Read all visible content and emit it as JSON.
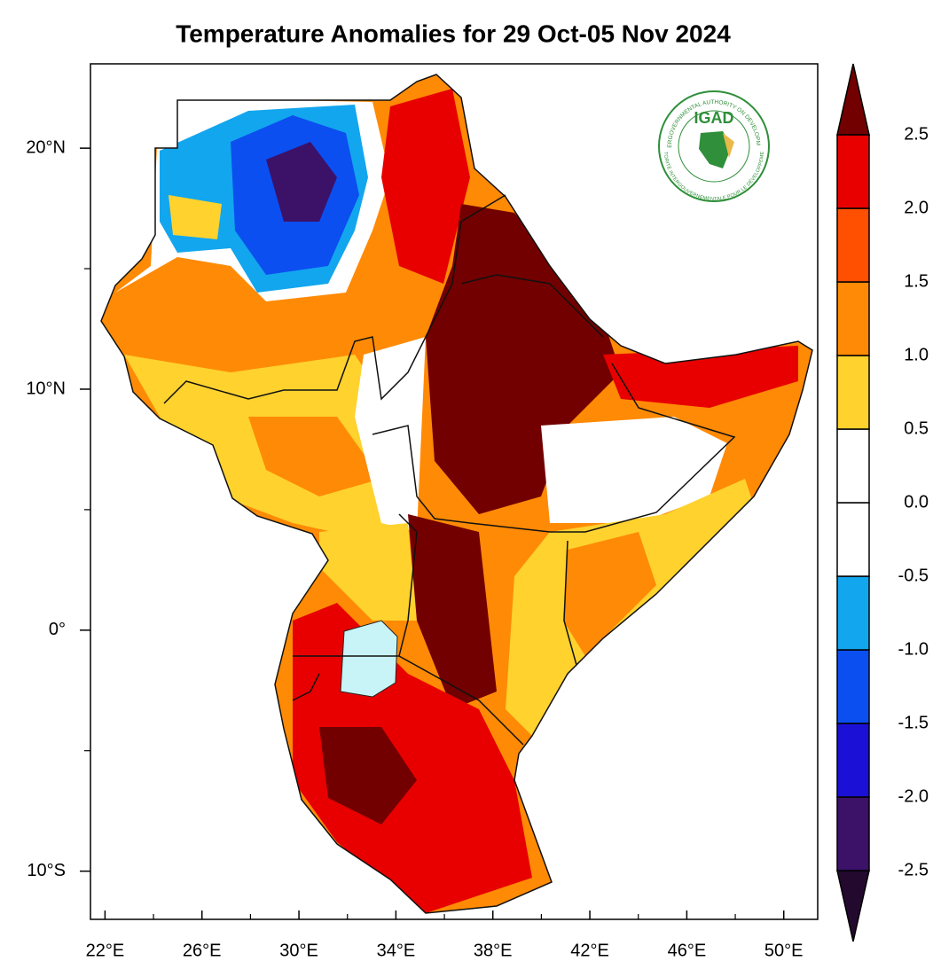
{
  "chart_data": {
    "type": "map",
    "title": "Temperature Anomalies for 29 Oct-05 Nov 2024",
    "xlim": [
      21.4,
      51.4
    ],
    "ylim": [
      -12,
      23.5
    ],
    "xticks": [
      {
        "value": 22,
        "label": "22°E"
      },
      {
        "value": 26,
        "label": "26°E"
      },
      {
        "value": 30,
        "label": "30°E"
      },
      {
        "value": 34,
        "label": "34°E"
      },
      {
        "value": 38,
        "label": "38°E"
      },
      {
        "value": 42,
        "label": "42°E"
      },
      {
        "value": 46,
        "label": "46°E"
      },
      {
        "value": 50,
        "label": "50°E"
      }
    ],
    "xminor_ticks": [
      24,
      28,
      32,
      36,
      40,
      44,
      48
    ],
    "yticks": [
      {
        "value": 20,
        "label": "20°N"
      },
      {
        "value": 10,
        "label": "10°N"
      },
      {
        "value": 0,
        "label": "0°"
      },
      {
        "value": -10,
        "label": "10°S"
      }
    ],
    "yminor_ticks": [
      15,
      5,
      -5
    ],
    "colorbar": {
      "levels": [
        {
          "value": -2.5,
          "label": "-2.5"
        },
        {
          "value": -2,
          "label": "-2.0"
        },
        {
          "value": -1.5,
          "label": "-1.5"
        },
        {
          "value": -1,
          "label": "-1.0"
        },
        {
          "value": -0.5,
          "label": "-0.5"
        },
        {
          "value": 0,
          "label": "0.0"
        },
        0.5,
        {
          "value": 1,
          "label": "1.0"
        },
        1.5,
        {
          "value": 2,
          "label": "2.0"
        },
        2.5
      ],
      "colors": [
        "#24092f",
        "#3c1168",
        "#1a10d6",
        "#0b4ff0",
        "#12a6ee",
        "#ffffff",
        "#ffffff",
        "#ffd22e",
        "#ff8a05",
        "#ff4f00",
        "#e80000",
        "#720000"
      ]
    },
    "logo": {
      "name": "IGAD",
      "top_ring": "INTERGOVERNMENTAL AUTHORITY ON DEVELOPMENT",
      "bottom_ring": "AUTORITÉ INTERGOUVERNEMENTALE POUR LE DÉVELOPPEMENT"
    }
  }
}
